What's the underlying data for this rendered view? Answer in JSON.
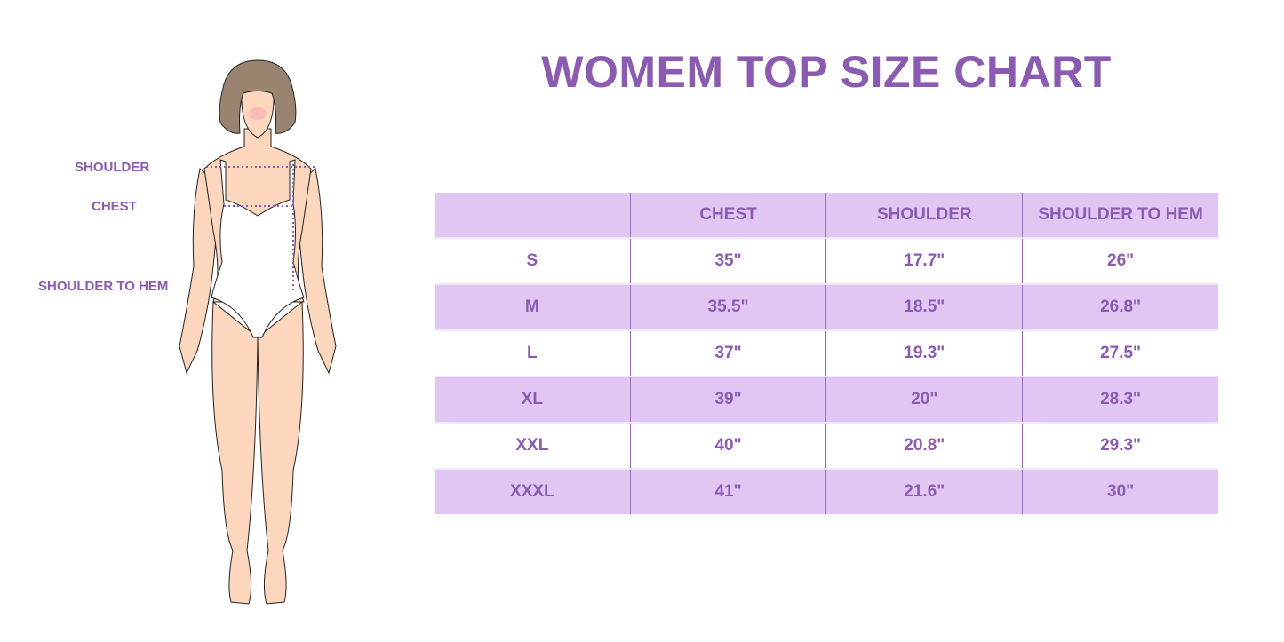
{
  "title": "WOMEM TOP SIZE CHART",
  "figure_labels": {
    "shoulder": "SHOULDER",
    "chest": "CHEST",
    "shoulder_to_hem": "SHOULDER TO HEM"
  },
  "colors": {
    "accent": "#8a5bb0",
    "row_fill": "#e1c6f4",
    "skin": "#fcd7bd",
    "hair": "#9a8470"
  },
  "table": {
    "headers": [
      "",
      "CHEST",
      "SHOULDER",
      "SHOULDER TO HEM"
    ],
    "rows": [
      [
        "S",
        "35\"",
        "17.7\"",
        "26\""
      ],
      [
        "M",
        "35.5\"",
        "18.5\"",
        "26.8\""
      ],
      [
        "L",
        "37\"",
        "19.3\"",
        "27.5\""
      ],
      [
        "XL",
        "39\"",
        "20\"",
        "28.3\""
      ],
      [
        "XXL",
        "40\"",
        "20.8\"",
        "29.3\""
      ],
      [
        "XXXL",
        "41\"",
        "21.6\"",
        "30\""
      ]
    ]
  }
}
